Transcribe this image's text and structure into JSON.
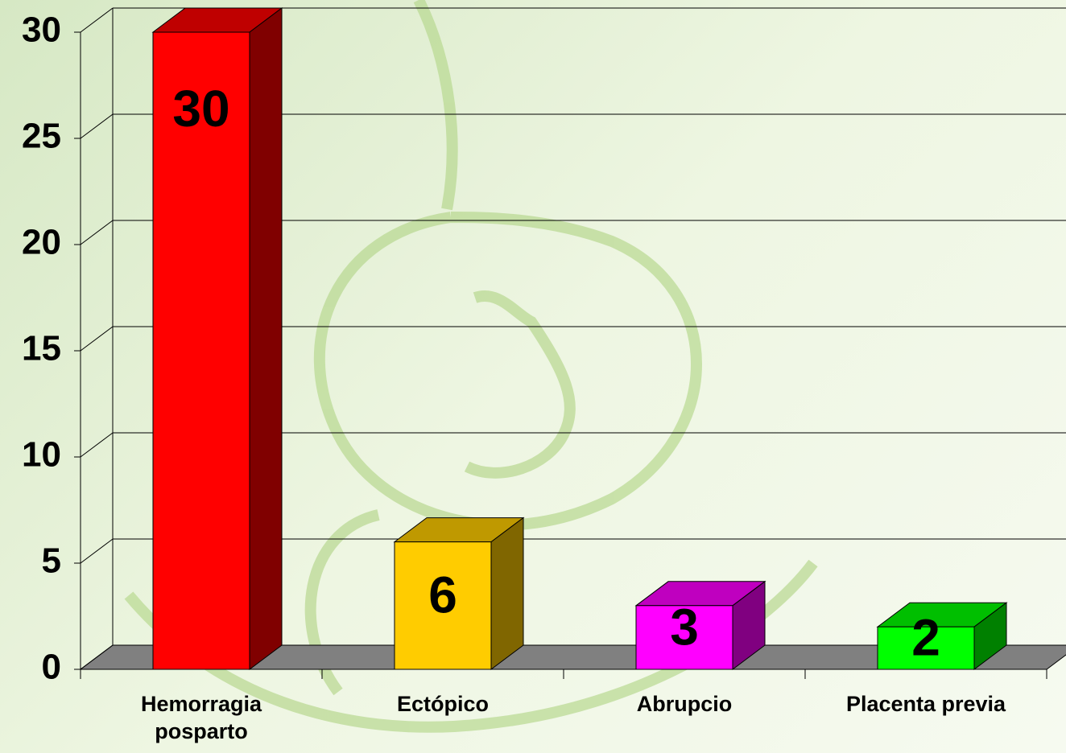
{
  "chart_data": {
    "type": "bar3d",
    "categories": [
      "Hemorragia posparto",
      "Ectópico",
      "Abrupcio",
      "Placenta previa"
    ],
    "values": [
      30,
      6,
      3,
      2
    ],
    "colors": [
      "#ff0000",
      "#ffcc00",
      "#ff00ff",
      "#00ff00"
    ],
    "ylim": [
      0,
      30
    ],
    "yticks": [
      0,
      5,
      10,
      15,
      20,
      25,
      30
    ],
    "grid": true
  }
}
